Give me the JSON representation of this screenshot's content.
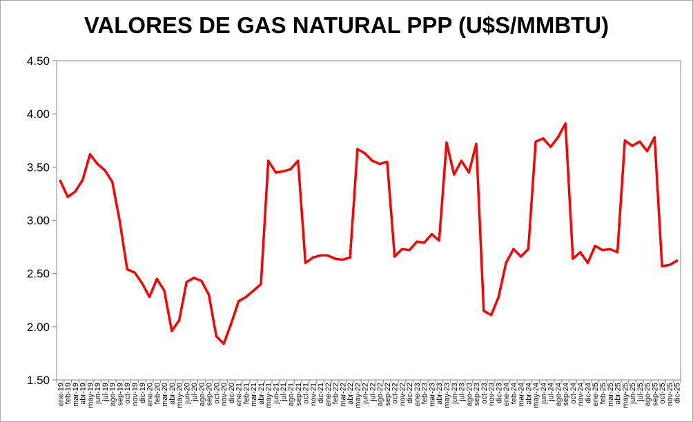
{
  "chart_data": {
    "type": "line",
    "title": "VALORES DE GAS NATURAL PPP (U$S/MMBTU)",
    "xlabel": "",
    "ylabel": "",
    "ylim": [
      1.5,
      4.5
    ],
    "yticks": [
      "1.50",
      "2.00",
      "2.50",
      "3.00",
      "3.50",
      "4.00",
      "4.50"
    ],
    "grid": false,
    "legend": "none",
    "line_color": "#ff0000",
    "categories": [
      "ene-19",
      "feb-19",
      "mar-19",
      "abr-19",
      "may-19",
      "jun-19",
      "jul-19",
      "ago-19",
      "sep-19",
      "oct-19",
      "nov-19",
      "dic-19",
      "ene-20",
      "feb-20",
      "mar-20",
      "abr-20",
      "may-20",
      "jun-20",
      "jul-20",
      "ago-20",
      "sep-20",
      "oct-20",
      "nov-20",
      "dic-20",
      "ene-21",
      "feb-21",
      "mar-21",
      "abr-21",
      "may-21",
      "jun-21",
      "jul-21",
      "ago-21",
      "sep-21",
      "oct-21",
      "nov-21",
      "dic-21",
      "ene-22",
      "feb-22",
      "mar-22",
      "abr-22",
      "may-22",
      "jun-22",
      "jul-22",
      "ago-22",
      "sep-22",
      "oct-22",
      "nov-22",
      "dic-22",
      "ene-23",
      "feb-23",
      "mar-23",
      "abr-23",
      "may-23",
      "jun-23",
      "jul-23",
      "ago-23",
      "sep-23",
      "oct-23",
      "nov-23",
      "dic-23",
      "ene-24",
      "feb-24",
      "mar-24",
      "abr-24",
      "may-24",
      "jun-24",
      "jul-24",
      "ago-24",
      "sep-24",
      "oct-24",
      "nov-24",
      "dic-24",
      "ene-25",
      "feb-25",
      "mar-25",
      "abr-25",
      "may-25",
      "jun-25",
      "jul-25",
      "ago-25",
      "sep-25",
      "oct-25",
      "nov-25",
      "dic-25"
    ],
    "series": [
      {
        "values": [
          3.37,
          3.22,
          3.27,
          3.38,
          3.62,
          3.53,
          3.47,
          3.36,
          2.99,
          2.54,
          2.51,
          2.41,
          2.28,
          2.45,
          2.34,
          1.96,
          2.06,
          2.42,
          2.46,
          2.43,
          2.3,
          1.91,
          1.84,
          2.03,
          2.24,
          2.28,
          2.34,
          2.4,
          3.56,
          3.45,
          3.46,
          3.48,
          3.56,
          2.6,
          2.65,
          2.67,
          2.67,
          2.64,
          2.63,
          2.65,
          3.67,
          3.63,
          3.56,
          3.53,
          3.55,
          2.66,
          2.73,
          2.72,
          2.8,
          2.79,
          2.87,
          2.81,
          3.73,
          3.43,
          3.56,
          3.45,
          3.72,
          2.15,
          2.11,
          2.28,
          2.6,
          2.73,
          2.66,
          2.73,
          3.74,
          3.77,
          3.69,
          3.78,
          3.91,
          2.64,
          2.7,
          2.6,
          2.76,
          2.72,
          2.73,
          2.7,
          3.75,
          3.7,
          3.74,
          3.65,
          3.78,
          2.57,
          2.58,
          2.62
        ]
      }
    ]
  }
}
